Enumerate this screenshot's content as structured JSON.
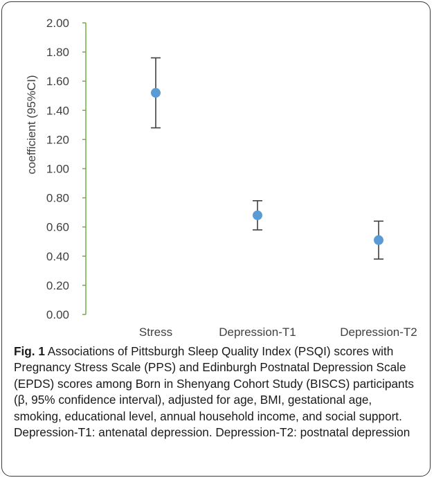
{
  "chart_data": {
    "type": "scatter",
    "xlabel": "",
    "ylabel": "coefficient (95%CI)",
    "ylim": [
      0,
      2
    ],
    "yticks": [
      "0.00",
      "0.20",
      "0.40",
      "0.60",
      "0.80",
      "1.00",
      "1.20",
      "1.40",
      "1.60",
      "1.80",
      "2.00"
    ],
    "categories": [
      "Stress",
      "Depression-T1",
      "Depression-T2"
    ],
    "points": [
      {
        "category": "Stress",
        "value": 1.52,
        "lower": 1.28,
        "upper": 1.76
      },
      {
        "category": "Depression-T1",
        "value": 0.68,
        "lower": 0.58,
        "upper": 0.78
      },
      {
        "category": "Depression-T2",
        "value": 0.51,
        "lower": 0.38,
        "upper": 0.64
      }
    ],
    "grid": false,
    "colors": {
      "marker": "#5b9bd5",
      "error_bar": "#404040",
      "axis": "#70ad47",
      "tick_text": "#404040"
    }
  },
  "caption": {
    "label": "Fig. 1",
    "text": " Associations of Pittsburgh Sleep Quality Index (PSQI) scores with Pregnancy Stress Scale (PPS) and Edinburgh Postnatal Depression Scale (EPDS) scores among Born in Shenyang Cohort Study (BISCS) participants (β, 95% confidence interval), adjusted for age, BMI, gestational age, smoking, educational level, annual household income, and social support. Depression-T1: antenatal depression. Depression-T2: postnatal depression"
  }
}
